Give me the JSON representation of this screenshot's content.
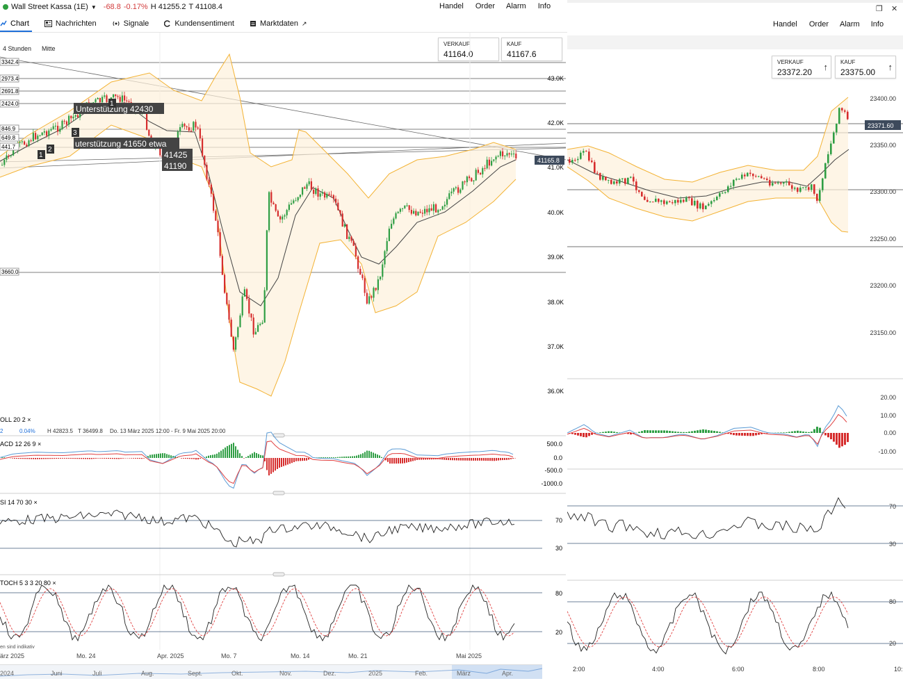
{
  "left": {
    "instrument": "Wall Street Kassa (1E)",
    "change": "-68.8",
    "change_pct": "-0.17%",
    "high": "H 41255.2",
    "low": "T 41108.4",
    "menu": [
      "Handel",
      "Order",
      "Alarm",
      "Info"
    ],
    "tabs": [
      {
        "label": "Chart",
        "icon": "chart-icon"
      },
      {
        "label": "Nachrichten",
        "icon": "news-icon"
      },
      {
        "label": "Signale",
        "icon": "signal-icon"
      },
      {
        "label": "Kundensentiment",
        "icon": "sentiment-icon"
      },
      {
        "label": "Marktdaten",
        "icon": "data-icon"
      }
    ],
    "timeframe": "4 Stunden",
    "price_mode": "Mitte",
    "sell": {
      "label": "VERKAUF",
      "value": "41164.0"
    },
    "buy": {
      "label": "KAUF",
      "value": "41167.6"
    },
    "current_price_tag": "41165.8",
    "y_ticks": [
      "43.0K",
      "42.0K",
      "41.0K",
      "40.0K",
      "39.0K",
      "38.0K",
      "37.0K",
      "36.0K"
    ],
    "left_levels": [
      "3342.4",
      "2973.4",
      "2691.8",
      "2424.0",
      "846.9",
      "649.8",
      "441.7",
      "3660.0"
    ],
    "annotations": [
      "Unterstützung 42430",
      "uterstützung 41650 etwa",
      "41425",
      "41190"
    ],
    "markers": [
      "1",
      "2",
      "3",
      "1"
    ],
    "boll_label": "OLL  20  2  ×",
    "info_row": {
      "a": "2",
      "b": "0.04%",
      "c": "H 42823.5",
      "d": "T 36499.8",
      "e": "Do. 13 März 2025 12:00 - Fr. 9 Mai 2025 20:00"
    },
    "macd_label": "ACD  12  26  9  ×",
    "macd_ticks": [
      "500.0",
      "0.0",
      "-500.0",
      "-1000.0"
    ],
    "rsi_label": "SI  14  70  30  ×",
    "rsi_ticks": [
      "70",
      "30"
    ],
    "stoch_label": "TOCH  5  3  3  20  80  ×",
    "stoch_ticks": [
      "80",
      "20"
    ],
    "indicative_note": "en sind indikativ",
    "x_ticks": [
      "ärz 2025",
      "Mo. 24",
      "Apr. 2025",
      "Mo. 7",
      "Mo. 14",
      "Mo. 21",
      "Mai 2025"
    ],
    "nav_ticks": [
      "2024",
      "Juni",
      "Juli",
      "Aug.",
      "Sept.",
      "Okt.",
      "Nov.",
      "Dez.",
      "2025",
      "Feb.",
      "März",
      "Apr."
    ]
  },
  "right": {
    "menu": [
      "Handel",
      "Order",
      "Alarm",
      "Info"
    ],
    "sell": {
      "label": "VERKAUF",
      "value": "23372.20"
    },
    "buy": {
      "label": "KAUF",
      "value": "23375.00"
    },
    "current_price_tag": "23371.60",
    "y_ticks": [
      "23400.00",
      "23350.00",
      "23300.00",
      "23250.00",
      "23200.00",
      "23150.00"
    ],
    "macd_ticks": [
      "20.00",
      "10.00",
      "0.00",
      "-10.00"
    ],
    "rsi_ticks": [
      "70",
      "30"
    ],
    "stoch_ticks": [
      "80",
      "20"
    ],
    "x_ticks": [
      "2:00",
      "4:00",
      "6:00",
      "8:00",
      "10:"
    ]
  },
  "colors": {
    "up": "#2f9e44",
    "down": "#d62d2d",
    "band": "#f3b233",
    "accent": "#1e6fd9"
  }
}
